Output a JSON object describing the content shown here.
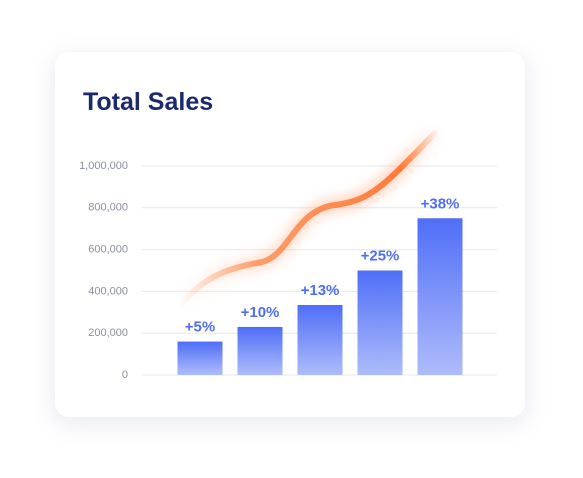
{
  "chart_data": {
    "type": "bar",
    "title": "Total Sales",
    "categories": [
      null,
      null,
      null,
      null,
      null
    ],
    "values": [
      160000,
      230000,
      335000,
      500000,
      750000
    ],
    "annotations": [
      "+5%",
      "+10%",
      "+13%",
      "+25%",
      "+38%"
    ],
    "color": "#4f6ef7",
    "ylim": [
      0,
      1000000
    ],
    "yticks": [
      0,
      {
        "value": 200000,
        "label": "200,000"
      },
      {
        "value": 400000,
        "label": "400,000"
      },
      {
        "value": 600000,
        "label": "600,000"
      },
      {
        "value": 800000,
        "label": "800,000"
      },
      {
        "value": 1000000,
        "label": "1,000,000"
      }
    ],
    "grid": true
  }
}
